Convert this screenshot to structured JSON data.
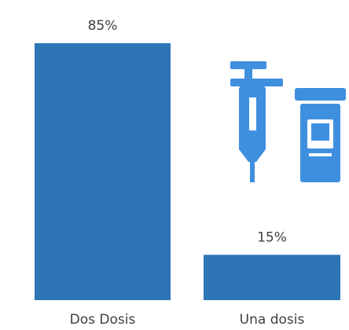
{
  "chart_data": {
    "type": "bar",
    "categories": [
      "Dos Dosis",
      "Una dosis"
    ],
    "values": [
      85,
      15
    ],
    "value_labels": [
      "85%",
      "15%"
    ],
    "color": "#2e75b6"
  }
}
